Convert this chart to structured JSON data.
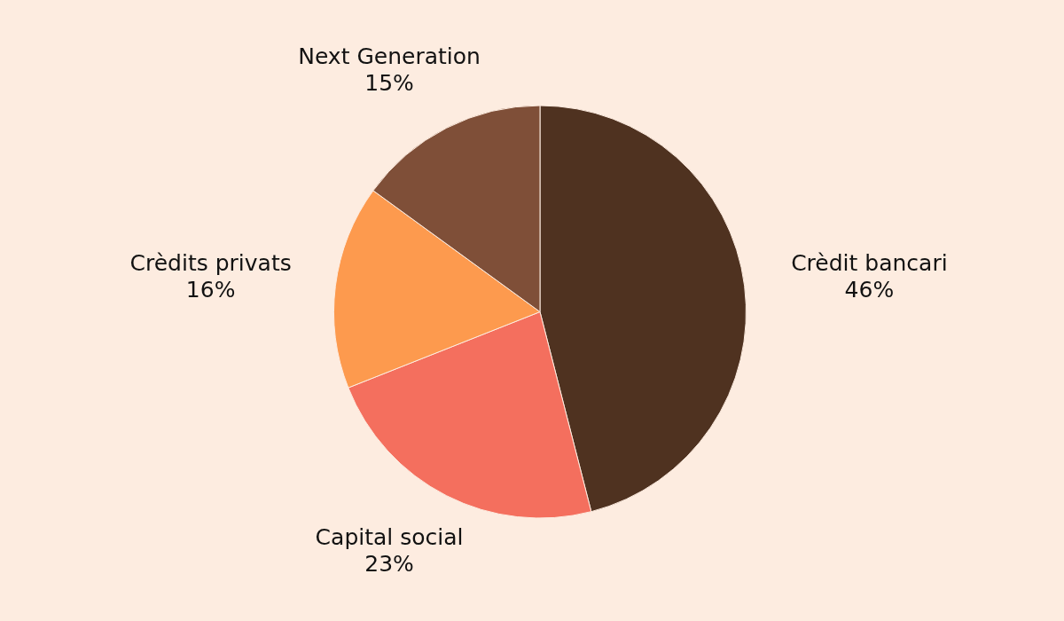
{
  "chart_data": {
    "type": "pie",
    "categories": [
      "Crèdit bancari",
      "Capital social",
      "Crèdits privats",
      "Next Generation"
    ],
    "values": [
      46,
      23,
      16,
      15
    ],
    "value_labels": [
      "46%",
      "23%",
      "16%",
      "15%"
    ],
    "colors": [
      "#4f3220",
      "#f46f5e",
      "#fd9a4e",
      "#7f4f38"
    ]
  }
}
